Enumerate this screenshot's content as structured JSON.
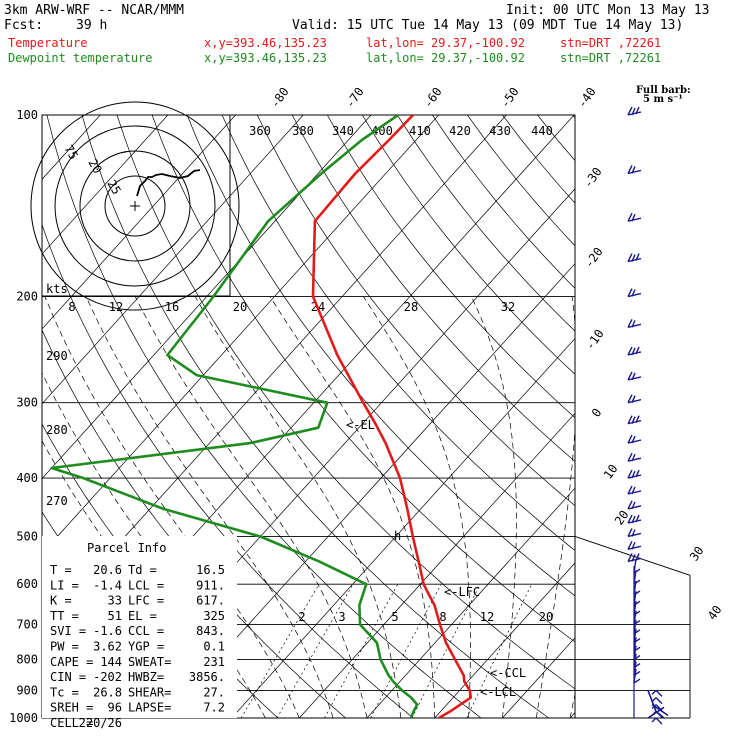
{
  "header": {
    "model": "3km ARW-WRF -- NCAR/MMM",
    "init": "Init: 00 UTC Mon 13 May 13",
    "fcst_label": "Fcst:",
    "fcst_value": "39 h",
    "valid": "Valid: 15 UTC Tue 14 May 13 (09 MDT Tue 14 May 13)",
    "temp_label": "Temperature",
    "dew_label": "Dewpoint temperature",
    "xy": "x,y=393.46,135.23",
    "latlon": "lat,lon= 29.37,-100.92",
    "stn": "stn=DRT ,72261",
    "full_barb_1": "Full barb:",
    "full_barb_2": "5 m s⁻¹"
  },
  "colors": {
    "temperature": "#e41a1a",
    "dewpoint": "#1e8c1e",
    "wind": "#1a1a8c",
    "header_temp": "#e41a1a",
    "header_dew": "#1e8c1e"
  },
  "parcel_info": {
    "title": "Parcel Info",
    "lines": [
      {
        "label": "T  =",
        "value": "20.6",
        "label2": "Td =",
        "value2": "16.5"
      },
      {
        "label": "LI =",
        "value": "-1.4",
        "label2": "LCL =",
        "value2": "911."
      },
      {
        "label": "K  =",
        "value": "33",
        "label2": "LFC =",
        "value2": "617."
      },
      {
        "label": "TT =",
        "value": "51",
        "label2": "EL  =",
        "value2": "325"
      },
      {
        "label": "SVI =",
        "value": "-1.6",
        "label2": "CCL =",
        "value2": "843."
      },
      {
        "label": "PW =",
        "value": "3.62",
        "label2": "YGP =",
        "value2": "0.1"
      },
      {
        "label": "CAPE =",
        "value": "144",
        "label2": "SWEAT=",
        "value2": "231"
      },
      {
        "label": "CIN =",
        "value": "-202",
        "label2": "HWBZ=",
        "value2": "3856."
      },
      {
        "label": "Tc =",
        "value": "26.8",
        "label2": "SHEAR=",
        "value2": "27."
      },
      {
        "label": "SREH =",
        "value": "96",
        "label2": "LAPSE=",
        "value2": "7.2"
      },
      {
        "label": "CELL =",
        "value": "220/26",
        "label2": "",
        "value2": ""
      }
    ]
  },
  "level_markers": {
    "el": "<-EL",
    "lfc": "<-LFC",
    "ccl": "<-CCL",
    "lcl": "<-LCL"
  },
  "chart_data": {
    "type": "line",
    "title": "",
    "y_axis": "pressure (hPa), log scale",
    "pressure_ticks": [
      100,
      200,
      300,
      400,
      500,
      600,
      700,
      800,
      900,
      1000
    ],
    "ylim": [
      1000,
      100
    ],
    "temp_ticks_top": [
      "-80",
      "-70",
      "-60",
      "-50",
      "-40"
    ],
    "temp_ticks_right": [
      "-30",
      "-20",
      "-10",
      "0",
      "10",
      "20",
      "30",
      "40"
    ],
    "theta_labels": [
      "360",
      "380",
      "340",
      "400",
      "410",
      "420",
      "430",
      "440"
    ],
    "theta_lower_labels": [
      "290",
      "280",
      "270"
    ],
    "hodograph_speed_labels": [
      "8",
      "12",
      "16",
      "20",
      "24",
      "28",
      "32"
    ],
    "hodograph_ring_labels": [
      "75",
      "20",
      "25"
    ],
    "kts_label": "kts",
    "mixing_ratio_labels": [
      "2",
      "3",
      "5",
      "8",
      "12",
      "20"
    ],
    "series": [
      {
        "name": "Temperature",
        "pressure": [
          1000,
          975,
          950,
          925,
          900,
          870,
          850,
          800,
          750,
          700,
          650,
          617,
          600,
          550,
          500,
          450,
          400,
          350,
          325,
          300,
          250,
          200,
          150,
          125,
          110,
          100
        ],
        "temperature": [
          20.6,
          21.4,
          22.0,
          22.6,
          21.5,
          19.5,
          18.6,
          15.2,
          11.6,
          8.3,
          4.9,
          2.0,
          0.5,
          -3.3,
          -7.5,
          -12.0,
          -17.2,
          -24.0,
          -28.1,
          -32.7,
          -42.9,
          -54.3,
          -64.1,
          -64.5,
          -64.0,
          -63.8
        ]
      },
      {
        "name": "Dewpoint temperature",
        "pressure": [
          1000,
          975,
          950,
          925,
          900,
          870,
          850,
          800,
          750,
          700,
          650,
          600,
          550,
          500,
          450,
          400,
          385,
          350,
          330,
          300,
          270,
          250,
          200,
          150,
          125,
          110,
          100
        ],
        "dewpoint": [
          16.5,
          16.0,
          15.6,
          13.8,
          11.5,
          9.0,
          7.5,
          4.2,
          1.4,
          -3.5,
          -6.2,
          -8.0,
          -18.0,
          -30.0,
          -48.0,
          -64.0,
          -70.0,
          -44.0,
          -36.0,
          -38.0,
          -61.0,
          -68.0,
          -69.0,
          -71.0,
          -69.5,
          -68.0,
          -66.0
        ]
      }
    ],
    "wind_barbs": "right edge, 1000-100 hPa, full barb = 5 m/s"
  }
}
